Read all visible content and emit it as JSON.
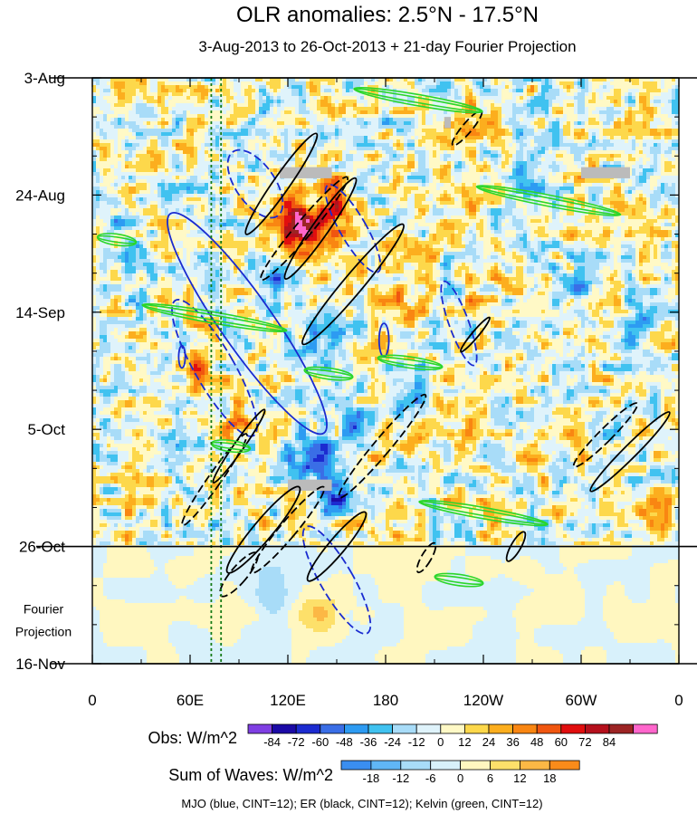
{
  "chart_data": {
    "type": "heatmap",
    "title": "OLR anomalies: 2.5°N - 17.5°N",
    "subtitle": "3-Aug-2013 to 26-Oct-2013 + 21-day Fourier Projection",
    "x_ticks": [
      "0",
      "60E",
      "120E",
      "180",
      "120W",
      "60W",
      "0"
    ],
    "x_tick_values": [
      0,
      60,
      120,
      180,
      240,
      300,
      360
    ],
    "y_ticks": [
      "3-Aug",
      "24-Aug",
      "14-Sep",
      "5-Oct",
      "26-Oct",
      "16-Nov"
    ],
    "y_tick_days": [
      0,
      21,
      42,
      63,
      84,
      105
    ],
    "xlim": [
      0,
      360
    ],
    "ylim_days": [
      0,
      105
    ],
    "projection_start_day": 84,
    "projection_label": [
      "Fourier",
      "Projection"
    ],
    "vertical_lines_lon": [
      73,
      79
    ],
    "gray_patches": [
      {
        "lon0": 115,
        "lon1": 147,
        "day0": 16,
        "day1": 18
      },
      {
        "lon0": 300,
        "lon1": 330,
        "day0": 16,
        "day1": 18
      },
      {
        "lon0": 216,
        "lon1": 220,
        "day0": 7,
        "day1": 9
      },
      {
        "lon0": 120,
        "lon1": 147,
        "day0": 72,
        "day1": 74
      }
    ],
    "blobs": [
      {
        "lon": 130,
        "day": 28,
        "rl": 22,
        "rd": 6,
        "v": 55
      },
      {
        "lon": 125,
        "day": 26,
        "rl": 12,
        "rd": 4,
        "v": 48
      },
      {
        "lon": 150,
        "day": 22,
        "rl": 10,
        "rd": 5,
        "v": 40
      },
      {
        "lon": 65,
        "day": 52,
        "rl": 6,
        "rd": 5,
        "v": 48
      },
      {
        "lon": 90,
        "day": 62,
        "rl": 8,
        "rd": 4,
        "v": 30
      },
      {
        "lon": 55,
        "day": 47,
        "rl": 5,
        "rd": 3,
        "v": -30
      },
      {
        "lon": 115,
        "day": 36,
        "rl": 14,
        "rd": 6,
        "v": -36
      },
      {
        "lon": 150,
        "day": 45,
        "rl": 14,
        "rd": 5,
        "v": -30
      },
      {
        "lon": 135,
        "day": 68,
        "rl": 12,
        "rd": 4,
        "v": -60
      },
      {
        "lon": 150,
        "day": 75,
        "rl": 10,
        "rd": 3,
        "v": -60
      },
      {
        "lon": 160,
        "day": 62,
        "rl": 8,
        "rd": 3,
        "v": -36
      },
      {
        "lon": 195,
        "day": 57,
        "rl": 14,
        "rd": 5,
        "v": -24
      },
      {
        "lon": 195,
        "day": 38,
        "rl": 16,
        "rd": 6,
        "v": 24
      },
      {
        "lon": 230,
        "day": 60,
        "rl": 14,
        "rd": 4,
        "v": 24
      },
      {
        "lon": 235,
        "day": 40,
        "rl": 8,
        "rd": 4,
        "v": 18
      },
      {
        "lon": 265,
        "day": 22,
        "rl": 12,
        "rd": 6,
        "v": -24
      },
      {
        "lon": 300,
        "day": 37,
        "rl": 10,
        "rd": 4,
        "v": -36
      },
      {
        "lon": 245,
        "day": 76,
        "rl": 12,
        "rd": 5,
        "v": 24
      },
      {
        "lon": 300,
        "day": 63,
        "rl": 10,
        "rd": 3,
        "v": 24
      },
      {
        "lon": 20,
        "day": 30,
        "rl": 14,
        "rd": 8,
        "v": -20
      },
      {
        "lon": 30,
        "day": 70,
        "rl": 14,
        "rd": 6,
        "v": 20
      },
      {
        "lon": 185,
        "day": 80,
        "rl": 18,
        "rd": 3,
        "v": 24
      },
      {
        "lon": 330,
        "day": 45,
        "rl": 12,
        "rd": 5,
        "v": -22
      },
      {
        "lon": 345,
        "day": 78,
        "rl": 10,
        "rd": 4,
        "v": 22
      },
      {
        "lon": 100,
        "day": 10,
        "rl": 12,
        "rd": 4,
        "v": -20
      },
      {
        "lon": 230,
        "day": 10,
        "rl": 14,
        "rd": 4,
        "v": 26
      },
      {
        "lon": 140,
        "day": 96,
        "rl": 14,
        "rd": 5,
        "v": 12
      },
      {
        "lon": 110,
        "day": 93,
        "rl": 12,
        "rd": 4,
        "v": -10
      }
    ],
    "wave_contours": [
      {
        "wave": "MJO",
        "lon": 150,
        "day": 90,
        "rl": 10,
        "rd": 11,
        "rot": -30,
        "dash": true
      },
      {
        "wave": "MJO",
        "lon": 95,
        "day": 44,
        "rl": 16,
        "rd": 24,
        "rot": -35,
        "dash": false
      },
      {
        "wave": "MJO",
        "lon": 75,
        "day": 52,
        "rl": 12,
        "rd": 14,
        "rot": -30,
        "dash": true
      },
      {
        "wave": "MJO",
        "lon": 100,
        "day": 19,
        "rl": 12,
        "rd": 7,
        "rot": -35,
        "dash": true
      },
      {
        "wave": "MJO",
        "lon": 160,
        "day": 27,
        "rl": 8,
        "rd": 9,
        "rot": -30,
        "dash": true
      },
      {
        "wave": "MJO",
        "lon": 225,
        "day": 44,
        "rl": 6,
        "rd": 8,
        "rot": -20,
        "dash": true
      },
      {
        "wave": "MJO",
        "lon": 179,
        "day": 47,
        "rl": 3,
        "rd": 3,
        "rot": 0,
        "dash": false
      },
      {
        "wave": "MJO",
        "lon": 55,
        "day": 50,
        "rl": 2,
        "rd": 2,
        "rot": 0,
        "dash": false
      },
      {
        "wave": "ER",
        "lon": 116,
        "day": 19,
        "rl": 5,
        "rd": 11,
        "rot": 35,
        "dash": false
      },
      {
        "wave": "ER",
        "lon": 140,
        "day": 27,
        "rl": 5,
        "rd": 11,
        "rot": 35,
        "dash": false
      },
      {
        "wave": "ER",
        "lon": 160,
        "day": 37,
        "rl": 6,
        "rd": 14,
        "rot": 40,
        "dash": false
      },
      {
        "wave": "ER",
        "lon": 130,
        "day": 27,
        "rl": 5,
        "rd": 12,
        "rot": 40,
        "dash": true
      },
      {
        "wave": "ER",
        "lon": 230,
        "day": 9,
        "rl": 3,
        "rd": 4,
        "rot": 40,
        "dash": true
      },
      {
        "wave": "ER",
        "lon": 75,
        "day": 72,
        "rl": 4,
        "rd": 10,
        "rot": 35,
        "dash": true
      },
      {
        "wave": "ER",
        "lon": 90,
        "day": 66,
        "rl": 3,
        "rd": 8,
        "rot": 35,
        "dash": false
      },
      {
        "wave": "ER",
        "lon": 105,
        "day": 81,
        "rl": 6,
        "rd": 10,
        "rot": 40,
        "dash": false
      },
      {
        "wave": "ER",
        "lon": 120,
        "day": 81,
        "rl": 5,
        "rd": 10,
        "rot": 40,
        "dash": true
      },
      {
        "wave": "ER",
        "lon": 150,
        "day": 84,
        "rl": 5,
        "rd": 8,
        "rot": 40,
        "dash": false
      },
      {
        "wave": "ER",
        "lon": 178,
        "day": 66,
        "rl": 5,
        "rd": 12,
        "rot": 40,
        "dash": true
      },
      {
        "wave": "ER",
        "lon": 235,
        "day": 46,
        "rl": 2,
        "rd": 4,
        "rot": 40,
        "dash": false
      },
      {
        "wave": "ER",
        "lon": 330,
        "day": 67,
        "rl": 4,
        "rd": 10,
        "rot": 45,
        "dash": false
      },
      {
        "wave": "ER",
        "lon": 315,
        "day": 64,
        "rl": 4,
        "rd": 8,
        "rot": 45,
        "dash": true
      },
      {
        "wave": "ER",
        "lon": 90,
        "day": 89,
        "rl": 5,
        "rd": 5,
        "rot": 40,
        "dash": true
      },
      {
        "wave": "ER",
        "lon": 260,
        "day": 84,
        "rl": 3,
        "rd": 3,
        "rot": 30,
        "dash": false
      },
      {
        "wave": "ER",
        "lon": 205,
        "day": 86,
        "rl": 3,
        "rd": 3,
        "rot": 30,
        "dash": true
      },
      {
        "wave": "Kelvin",
        "lon": 200,
        "day": 4,
        "rl": 40,
        "rd": 1,
        "rot": 10,
        "dash": false
      },
      {
        "wave": "Kelvin",
        "lon": 280,
        "day": 22,
        "rl": 45,
        "rd": 1,
        "rot": 11,
        "dash": false
      },
      {
        "wave": "Kelvin",
        "lon": 75,
        "day": 43,
        "rl": 45,
        "rd": 1,
        "rot": 10,
        "dash": false
      },
      {
        "wave": "Kelvin",
        "lon": 240,
        "day": 78,
        "rl": 40,
        "rd": 1,
        "rot": 10,
        "dash": false
      },
      {
        "wave": "Kelvin",
        "lon": 15,
        "day": 29,
        "rl": 12,
        "rd": 1,
        "rot": 8,
        "dash": false
      },
      {
        "wave": "Kelvin",
        "lon": 195,
        "day": 51,
        "rl": 20,
        "rd": 1,
        "rot": 8,
        "dash": false
      },
      {
        "wave": "Kelvin",
        "lon": 225,
        "day": 90,
        "rl": 15,
        "rd": 1,
        "rot": 8,
        "dash": false
      },
      {
        "wave": "Kelvin",
        "lon": 145,
        "day": 53,
        "rl": 15,
        "rd": 1,
        "rot": 8,
        "dash": false
      },
      {
        "wave": "Kelvin",
        "lon": 85,
        "day": 66,
        "rl": 12,
        "rd": 1,
        "rot": 8,
        "dash": false
      }
    ]
  },
  "colorbars": {
    "obs": {
      "label": "Obs: W/m^2",
      "ticks": [
        "-84",
        "-72",
        "-60",
        "-48",
        "-36",
        "-24",
        "-12",
        "0",
        "12",
        "24",
        "36",
        "48",
        "60",
        "72",
        "84"
      ],
      "colors": [
        "#7f3fe3",
        "#1b0aa6",
        "#1c2bd0",
        "#3a6ee6",
        "#2d9bf2",
        "#40c2f0",
        "#a8dcf8",
        "#dff3fb",
        "#fff9c6",
        "#fdd84b",
        "#fcae1e",
        "#f98612",
        "#f05610",
        "#e10e0e",
        "#b5101c",
        "#9c2424",
        "#ff66cc"
      ]
    },
    "waves": {
      "label": "Sum of Waves: W/m^2",
      "ticks": [
        "-18",
        "-12",
        "-6",
        "0",
        "6",
        "12",
        "18"
      ],
      "colors": [
        "#3a8ef0",
        "#60b6f6",
        "#a8dcf8",
        "#d8f1fb",
        "#fff7c0",
        "#fde06a",
        "#fcb845",
        "#f98b1a"
      ]
    }
  },
  "footer": "MJO (blue, CINT=12); ER (black, CINT=12); Kelvin (green, CINT=12)",
  "style": {
    "mjo_color": "#1a2bd0",
    "er_color": "#000000",
    "kelvin_color": "#2bd62b",
    "vline_color": "#157a15",
    "gray_patch_color": "#bbbbbb"
  }
}
